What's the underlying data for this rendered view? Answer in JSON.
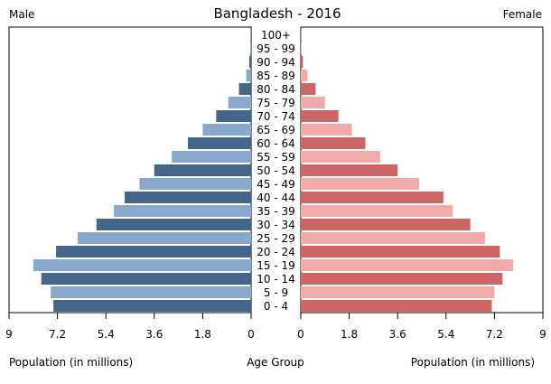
{
  "chart_data": {
    "type": "bar",
    "title": "Bangladesh - 2016",
    "left_label": "Male",
    "right_label": "Female",
    "xlabel_left": "Population (in millions)",
    "xlabel_center": "Age Group",
    "xlabel_right": "Population (in millions)",
    "xlim": [
      0,
      9
    ],
    "ticks": [
      "0",
      "1.8",
      "3.6",
      "5.4",
      "7.2",
      "9"
    ],
    "tick_values": [
      0,
      1.8,
      3.6,
      5.4,
      7.2,
      9
    ],
    "categories": [
      "0 - 4",
      "5 - 9",
      "10 - 14",
      "15 - 19",
      "20 - 24",
      "25 - 29",
      "30 - 34",
      "35 - 39",
      "40 - 44",
      "45 - 49",
      "50 - 54",
      "55 - 59",
      "60 - 64",
      "65 - 69",
      "70 - 74",
      "75 - 79",
      "80 - 84",
      "85 - 89",
      "90 - 94",
      "95 - 99",
      "100+"
    ],
    "series": [
      {
        "name": "Male",
        "values": [
          7.35,
          7.45,
          7.8,
          8.1,
          7.25,
          6.45,
          5.75,
          5.1,
          4.7,
          4.15,
          3.6,
          2.95,
          2.35,
          1.8,
          1.3,
          0.85,
          0.45,
          0.18,
          0.07,
          0.03,
          0.01
        ]
      },
      {
        "name": "Female",
        "values": [
          7.1,
          7.2,
          7.5,
          7.9,
          7.4,
          6.85,
          6.3,
          5.65,
          5.3,
          4.4,
          3.6,
          2.95,
          2.4,
          1.9,
          1.4,
          0.9,
          0.55,
          0.25,
          0.08,
          0.03,
          0.01
        ]
      }
    ],
    "colors": {
      "male_dark": "#44668b",
      "male_light": "#88a9cc",
      "female_dark": "#cc6666",
      "female_light": "#f0aaaa",
      "frame": "#000000"
    }
  }
}
